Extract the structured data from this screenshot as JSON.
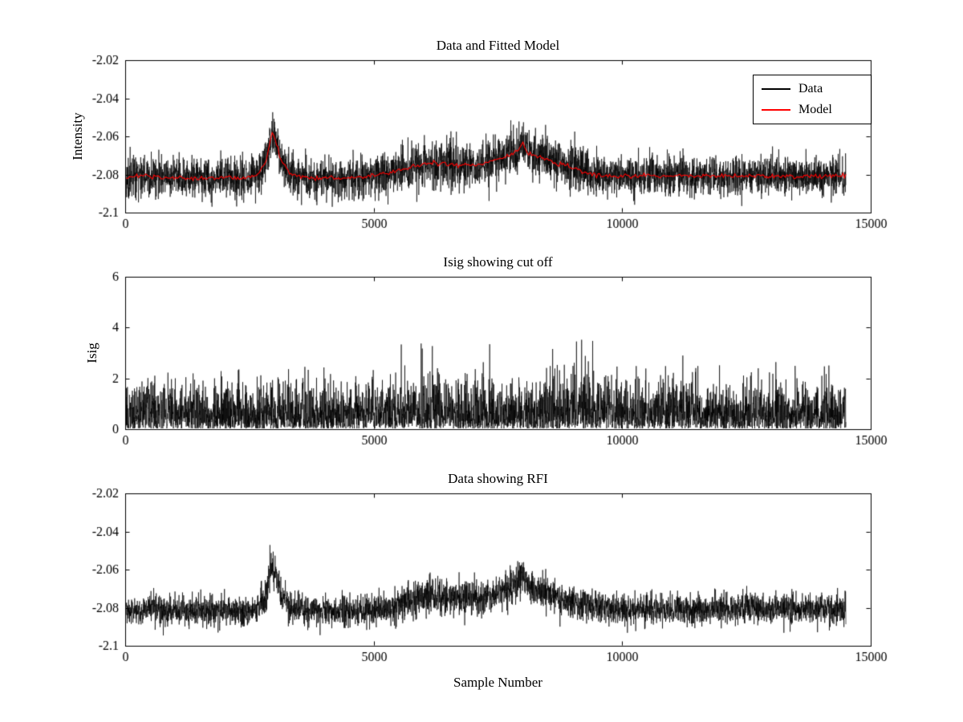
{
  "figure": {
    "background": "#ffffff",
    "axis_color": "#000000"
  },
  "chart_data": [
    {
      "type": "line",
      "title": "Data and Fitted Model",
      "ylabel": "Intensity",
      "xlabel": "",
      "xlim": [
        0,
        15000
      ],
      "ylim": [
        -2.1,
        -2.02
      ],
      "x_data_max": 14500,
      "xticks": {
        "values": [
          0,
          5000,
          10000,
          15000
        ],
        "labels": [
          "0",
          "5000",
          "10000",
          "15000"
        ]
      },
      "yticks": {
        "values": [
          -2.1,
          -2.08,
          -2.06,
          -2.04,
          -2.02
        ],
        "labels": [
          "-2.1",
          "-2.08",
          "-2.06",
          "-2.04",
          "-2.02"
        ]
      },
      "legend": {
        "position": "top-right",
        "entries": [
          {
            "label": "Data",
            "color": "#000000"
          },
          {
            "label": "Model",
            "color": "#ff0000"
          }
        ]
      },
      "series": [
        {
          "name": "Data",
          "color": "#000000",
          "render": "noisy",
          "n_points": 4500,
          "seed": 1234,
          "noise_sd": 0.0052,
          "line_width": 0.65,
          "baseline_anchors": [
            [
              0,
              -2.082
            ],
            [
              400,
              -2.0805
            ],
            [
              800,
              -2.0818
            ],
            [
              1400,
              -2.082
            ],
            [
              2000,
              -2.0815
            ],
            [
              2450,
              -2.0818
            ],
            [
              2700,
              -2.079
            ],
            [
              2850,
              -2.072
            ],
            [
              2950,
              -2.058
            ],
            [
              3020,
              -2.062
            ],
            [
              3120,
              -2.0718
            ],
            [
              3300,
              -2.079
            ],
            [
              3600,
              -2.0815
            ],
            [
              4200,
              -2.082
            ],
            [
              4800,
              -2.0815
            ],
            [
              5300,
              -2.0795
            ],
            [
              5800,
              -2.076
            ],
            [
              6100,
              -2.0738
            ],
            [
              6400,
              -2.0742
            ],
            [
              6800,
              -2.0752
            ],
            [
              7200,
              -2.0748
            ],
            [
              7600,
              -2.0712
            ],
            [
              7900,
              -2.0678
            ],
            [
              7990,
              -2.0628
            ],
            [
              8060,
              -2.0672
            ],
            [
              8200,
              -2.07
            ],
            [
              8500,
              -2.0722
            ],
            [
              8800,
              -2.075
            ],
            [
              9100,
              -2.0775
            ],
            [
              9400,
              -2.08
            ],
            [
              9800,
              -2.081
            ],
            [
              10600,
              -2.0805
            ],
            [
              11600,
              -2.081
            ],
            [
              12600,
              -2.0806
            ],
            [
              13600,
              -2.081
            ],
            [
              14500,
              -2.0805
            ]
          ],
          "noise_env_anchors": [
            [
              0,
              1.0
            ],
            [
              2500,
              1.0
            ],
            [
              2950,
              1.15
            ],
            [
              3400,
              1.0
            ],
            [
              5200,
              1.1
            ],
            [
              6000,
              1.3
            ],
            [
              6600,
              1.25
            ],
            [
              7400,
              1.1
            ],
            [
              8000,
              1.2
            ],
            [
              8600,
              1.1
            ],
            [
              9100,
              1.2
            ],
            [
              9700,
              1.0
            ],
            [
              14500,
              1.0
            ]
          ]
        },
        {
          "name": "Model",
          "color": "#ff0000",
          "render": "smooth",
          "n_points": 500,
          "seed": 7,
          "noise_sd": 0.0006,
          "line_width": 1.1,
          "baseline_anchors": [
            [
              0,
              -2.082
            ],
            [
              400,
              -2.0805
            ],
            [
              800,
              -2.0818
            ],
            [
              1400,
              -2.082
            ],
            [
              2000,
              -2.0815
            ],
            [
              2450,
              -2.0818
            ],
            [
              2700,
              -2.079
            ],
            [
              2850,
              -2.072
            ],
            [
              2950,
              -2.058
            ],
            [
              3020,
              -2.062
            ],
            [
              3120,
              -2.0718
            ],
            [
              3300,
              -2.079
            ],
            [
              3600,
              -2.0815
            ],
            [
              4200,
              -2.082
            ],
            [
              4800,
              -2.0815
            ],
            [
              5300,
              -2.0795
            ],
            [
              5800,
              -2.076
            ],
            [
              6100,
              -2.0738
            ],
            [
              6400,
              -2.0742
            ],
            [
              6800,
              -2.0752
            ],
            [
              7200,
              -2.0748
            ],
            [
              7600,
              -2.0712
            ],
            [
              7900,
              -2.0678
            ],
            [
              7990,
              -2.0628
            ],
            [
              8060,
              -2.0672
            ],
            [
              8200,
              -2.07
            ],
            [
              8500,
              -2.0722
            ],
            [
              8800,
              -2.075
            ],
            [
              9100,
              -2.0775
            ],
            [
              9400,
              -2.08
            ],
            [
              9800,
              -2.081
            ],
            [
              10600,
              -2.0805
            ],
            [
              11600,
              -2.081
            ],
            [
              12600,
              -2.0806
            ],
            [
              13600,
              -2.081
            ],
            [
              14500,
              -2.0805
            ]
          ]
        }
      ]
    },
    {
      "type": "line",
      "title": "Isig showing cut off",
      "ylabel": "Isig",
      "xlabel": "",
      "xlim": [
        0,
        15000
      ],
      "ylim": [
        0,
        6
      ],
      "x_data_max": 14500,
      "xticks": {
        "values": [
          0,
          5000,
          10000,
          15000
        ],
        "labels": [
          "0",
          "5000",
          "10000",
          "15000"
        ]
      },
      "yticks": {
        "values": [
          0,
          2,
          4,
          6
        ],
        "labels": [
          "0",
          "2",
          "4",
          "6"
        ]
      },
      "series": [
        {
          "name": "Isig",
          "color": "#000000",
          "render": "halfnormal",
          "n_points": 4500,
          "seed": 2024,
          "scale": 0.8,
          "clip": 4.25,
          "line_width": 0.65,
          "envelope_anchors": [
            [
              0,
              1.0
            ],
            [
              500,
              1.25
            ],
            [
              900,
              1.05
            ],
            [
              1500,
              1.0
            ],
            [
              3000,
              1.0
            ],
            [
              5600,
              1.05
            ],
            [
              6150,
              1.45
            ],
            [
              6700,
              1.1
            ],
            [
              7500,
              1.0
            ],
            [
              8900,
              1.3
            ],
            [
              9150,
              1.5
            ],
            [
              9600,
              1.1
            ],
            [
              10400,
              1.05
            ],
            [
              10900,
              1.2
            ],
            [
              11600,
              1.0
            ],
            [
              13000,
              1.05
            ],
            [
              14500,
              1.05
            ]
          ]
        }
      ]
    },
    {
      "type": "line",
      "title": "Data showing RFI",
      "ylabel": "",
      "xlabel": "Sample Number",
      "xlim": [
        0,
        15000
      ],
      "ylim": [
        -2.1,
        -2.02
      ],
      "x_data_max": 14500,
      "xticks": {
        "values": [
          0,
          5000,
          10000,
          15000
        ],
        "labels": [
          "0",
          "5000",
          "10000",
          "15000"
        ]
      },
      "yticks": {
        "values": [
          -2.1,
          -2.08,
          -2.06,
          -2.04,
          -2.02
        ],
        "labels": [
          "-2.1",
          "-2.08",
          "-2.06",
          "-2.04",
          "-2.02"
        ]
      },
      "series": [
        {
          "name": "Data",
          "color": "#000000",
          "render": "noisy",
          "n_points": 4500,
          "seed": 555,
          "noise_sd": 0.0038,
          "line_width": 0.65,
          "baseline_anchors": [
            [
              0,
              -2.082
            ],
            [
              400,
              -2.0805
            ],
            [
              800,
              -2.0818
            ],
            [
              1400,
              -2.082
            ],
            [
              2000,
              -2.0815
            ],
            [
              2450,
              -2.0818
            ],
            [
              2700,
              -2.079
            ],
            [
              2850,
              -2.072
            ],
            [
              2950,
              -2.058
            ],
            [
              3020,
              -2.062
            ],
            [
              3120,
              -2.0718
            ],
            [
              3300,
              -2.079
            ],
            [
              3600,
              -2.0815
            ],
            [
              4200,
              -2.082
            ],
            [
              4800,
              -2.0815
            ],
            [
              5300,
              -2.0795
            ],
            [
              5800,
              -2.076
            ],
            [
              6100,
              -2.0738
            ],
            [
              6400,
              -2.0742
            ],
            [
              6800,
              -2.0752
            ],
            [
              7200,
              -2.0748
            ],
            [
              7600,
              -2.0712
            ],
            [
              7900,
              -2.0678
            ],
            [
              7990,
              -2.0628
            ],
            [
              8060,
              -2.0672
            ],
            [
              8200,
              -2.07
            ],
            [
              8500,
              -2.0722
            ],
            [
              8800,
              -2.075
            ],
            [
              9100,
              -2.0775
            ],
            [
              9400,
              -2.08
            ],
            [
              9800,
              -2.081
            ],
            [
              10600,
              -2.0805
            ],
            [
              11600,
              -2.081
            ],
            [
              12600,
              -2.0806
            ],
            [
              13600,
              -2.081
            ],
            [
              14500,
              -2.0805
            ]
          ],
          "noise_env_anchors": [
            [
              0,
              1.0
            ],
            [
              2500,
              1.0
            ],
            [
              2950,
              1.15
            ],
            [
              3400,
              1.0
            ],
            [
              5200,
              1.1
            ],
            [
              6000,
              1.3
            ],
            [
              6600,
              1.25
            ],
            [
              7400,
              1.1
            ],
            [
              8000,
              1.2
            ],
            [
              8600,
              1.1
            ],
            [
              9100,
              1.2
            ],
            [
              9700,
              1.0
            ],
            [
              14500,
              1.0
            ]
          ]
        }
      ]
    }
  ]
}
